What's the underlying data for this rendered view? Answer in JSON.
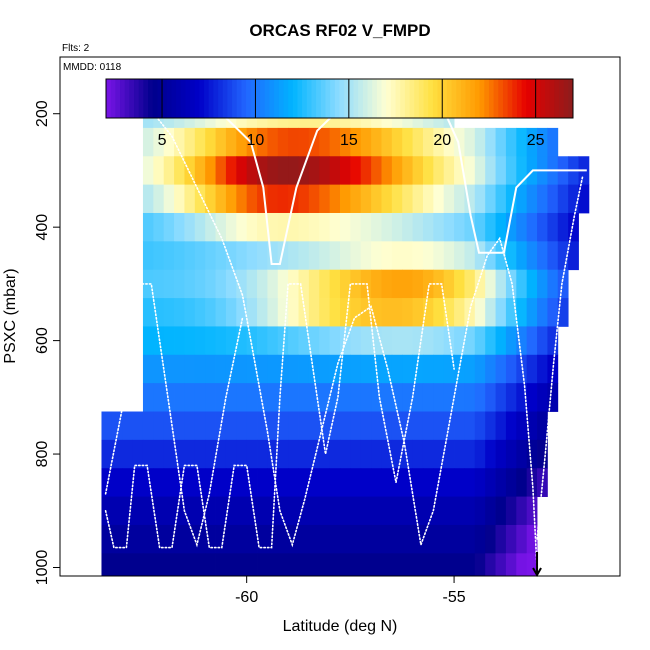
{
  "chart_data": {
    "type": "heatmap",
    "title": "ORCAS RF02 V_FMPD",
    "flights_label": "Flts: 2",
    "date_label": "MMDD: 0118",
    "xlabel": "Latitude (deg N)",
    "ylabel": "PSXC (mbar)",
    "xlim": [
      -64.5,
      -51
    ],
    "ylim": [
      1015,
      100
    ],
    "y_reversed": true,
    "x_ticks": [
      -60,
      -55
    ],
    "x_tick_labels": [
      "-60",
      "-55"
    ],
    "y_ticks": [
      200,
      400,
      600,
      800,
      1000
    ],
    "y_tick_labels": [
      "200",
      "400",
      "600",
      "800",
      "1000"
    ],
    "grid": false,
    "colorbar": {
      "range": [
        2,
        27
      ],
      "ticks": [
        5,
        10,
        15,
        20,
        25
      ],
      "tick_labels": [
        "5",
        "10",
        "15",
        "20",
        "25"
      ],
      "dividers": [
        5,
        10,
        15,
        20,
        25
      ],
      "colors": [
        "#7a14e8",
        "#00008c",
        "#0000c8",
        "#2266ff",
        "#00b4ff",
        "#8edcff",
        "#ffffd2",
        "#ffe040",
        "#ff9900",
        "#e60000",
        "#8c1c1c"
      ]
    },
    "cell": {
      "dlat": 0.25,
      "dp": 50
    },
    "grid_data": {
      "lat_min": -63.5,
      "lat_max": -51.75,
      "rows": [
        {
          "p_top": 175,
          "p_bot": 225,
          "lat_start": -62.5,
          "lat_end": -55
        },
        {
          "p_top": 225,
          "p_bot": 275,
          "lat_start": -62.5,
          "lat_end": -52.5
        },
        {
          "p_top": 275,
          "p_bot": 325,
          "lat_start": -62.5,
          "lat_end": -51.75
        },
        {
          "p_top": 325,
          "p_bot": 375,
          "lat_start": -62.5,
          "lat_end": -51.75
        },
        {
          "p_top": 375,
          "p_bot": 425,
          "lat_start": -62.5,
          "lat_end": -52
        },
        {
          "p_top": 425,
          "p_bot": 475,
          "lat_start": -62.5,
          "lat_end": -52
        },
        {
          "p_top": 475,
          "p_bot": 525,
          "lat_start": -62.5,
          "lat_end": -52.25
        },
        {
          "p_top": 525,
          "p_bot": 575,
          "lat_start": -62.5,
          "lat_end": -52.25
        },
        {
          "p_top": 575,
          "p_bot": 625,
          "lat_start": -62.5,
          "lat_end": -52.5
        },
        {
          "p_top": 625,
          "p_bot": 675,
          "lat_start": -62.5,
          "lat_end": -52.5
        },
        {
          "p_top": 675,
          "p_bot": 725,
          "lat_start": -62.5,
          "lat_end": -52.5
        },
        {
          "p_top": 725,
          "p_bot": 775,
          "lat_start": -63.5,
          "lat_end": -52.75
        },
        {
          "p_top": 775,
          "p_bot": 825,
          "lat_start": -63.5,
          "lat_end": -52.75
        },
        {
          "p_top": 825,
          "p_bot": 875,
          "lat_start": -63.5,
          "lat_end": -52.75
        },
        {
          "p_top": 875,
          "p_bot": 925,
          "lat_start": -63.5,
          "lat_end": -53
        },
        {
          "p_top": 925,
          "p_bot": 975,
          "lat_start": -63.5,
          "lat_end": -53
        },
        {
          "p_top": 975,
          "p_bot": 1015,
          "lat_start": -63.5,
          "lat_end": -53
        }
      ],
      "warm_blobs": [
        {
          "lat": -58.4,
          "p": 300,
          "amp": 11.5,
          "slat": 2.4,
          "sp": 70
        },
        {
          "lat": -59.8,
          "p": 330,
          "amp": 3,
          "slat": 1.2,
          "sp": 60
        },
        {
          "lat": -55.9,
          "p": 520,
          "amp": 8,
          "slat": 1.6,
          "sp": 55
        },
        {
          "lat": -58.3,
          "p": 535,
          "amp": 4,
          "slat": 1.4,
          "sp": 40
        }
      ],
      "background_profile": [
        {
          "p": 175,
          "v": 14
        },
        {
          "p": 300,
          "v": 13.5
        },
        {
          "p": 420,
          "v": 12
        },
        {
          "p": 480,
          "v": 13.5
        },
        {
          "p": 600,
          "v": 12
        },
        {
          "p": 700,
          "v": 10
        },
        {
          "p": 800,
          "v": 8
        },
        {
          "p": 900,
          "v": 6
        },
        {
          "p": 1000,
          "v": 4.5
        }
      ],
      "east_bias": {
        "lat0": -54.5,
        "per_deg": -2.2
      }
    },
    "flight_tracks": [
      {
        "name": "track-a",
        "style": "solid",
        "points": [
          [
            -62.4,
            175
          ],
          [
            -61.5,
            180
          ],
          [
            -60.6,
            200
          ],
          [
            -59.9,
            250
          ],
          [
            -59.6,
            330
          ],
          [
            -59.4,
            465
          ],
          [
            -59.2,
            465
          ],
          [
            -58.8,
            330
          ],
          [
            -58.3,
            230
          ],
          [
            -57.6,
            180
          ],
          [
            -57,
            180
          ],
          [
            -56,
            180
          ],
          [
            -55.3,
            185
          ],
          [
            -54.9,
            250
          ],
          [
            -54.6,
            380
          ],
          [
            -54.4,
            445
          ],
          [
            -53.8,
            445
          ],
          [
            -53.5,
            330
          ],
          [
            -53.1,
            300
          ],
          [
            -52.8,
            300
          ],
          [
            -52.3,
            300
          ],
          [
            -51.8,
            300
          ]
        ]
      },
      {
        "name": "track-b",
        "style": "dotted",
        "points": [
          [
            -62.4,
            185
          ],
          [
            -61.8,
            240
          ],
          [
            -61.2,
            330
          ],
          [
            -60.6,
            420
          ],
          [
            -60.1,
            520
          ],
          [
            -59.8,
            640
          ],
          [
            -59.5,
            760
          ],
          [
            -59.2,
            900
          ],
          [
            -58.9,
            960
          ],
          [
            -58.6,
            880
          ],
          [
            -58.2,
            760
          ],
          [
            -57.8,
            640
          ],
          [
            -57.4,
            560
          ],
          [
            -57.0,
            540
          ],
          [
            -56.6,
            650
          ],
          [
            -56.2,
            780
          ],
          [
            -55.8,
            960
          ],
          [
            -55.5,
            900
          ],
          [
            -55.2,
            780
          ],
          [
            -54.9,
            660
          ],
          [
            -54.6,
            540
          ],
          [
            -54.2,
            450
          ],
          [
            -53.9,
            420
          ],
          [
            -53.6,
            500
          ],
          [
            -53.3,
            680
          ],
          [
            -53.1,
            860
          ],
          [
            -53.0,
            1000
          ]
        ]
      },
      {
        "name": "track-c",
        "style": "dotted",
        "points": [
          [
            -63.4,
            900
          ],
          [
            -63.2,
            965
          ],
          [
            -62.9,
            965
          ],
          [
            -62.7,
            820
          ],
          [
            -62.4,
            820
          ],
          [
            -62.1,
            965
          ],
          [
            -61.8,
            965
          ],
          [
            -61.5,
            820
          ],
          [
            -61.2,
            820
          ],
          [
            -60.9,
            965
          ],
          [
            -60.6,
            965
          ],
          [
            -60.3,
            820
          ],
          [
            -60.0,
            820
          ],
          [
            -59.7,
            965
          ],
          [
            -59.4,
            965
          ],
          [
            -59.2,
            700
          ],
          [
            -59.0,
            500
          ],
          [
            -58.7,
            500
          ],
          [
            -58.4,
            650
          ],
          [
            -58.1,
            800
          ],
          [
            -57.8,
            700
          ],
          [
            -57.5,
            500
          ],
          [
            -57.1,
            500
          ],
          [
            -56.8,
            700
          ],
          [
            -56.4,
            850
          ],
          [
            -56.0,
            700
          ],
          [
            -55.6,
            500
          ],
          [
            -55.3,
            500
          ],
          [
            -55.0,
            650
          ]
        ]
      },
      {
        "name": "track-d",
        "style": "dotted",
        "points": [
          [
            -63.4,
            870
          ],
          [
            -63.0,
            720
          ],
          [
            -62.6,
            500
          ],
          [
            -62.3,
            500
          ],
          [
            -61.9,
            700
          ],
          [
            -61.5,
            900
          ],
          [
            -61.2,
            960
          ],
          [
            -60.9,
            870
          ],
          [
            -60.5,
            700
          ],
          [
            -60.1,
            560
          ]
        ]
      },
      {
        "name": "track-e",
        "style": "dotted",
        "points": [
          [
            -53.0,
            950
          ],
          [
            -52.8,
            800
          ],
          [
            -52.6,
            640
          ],
          [
            -52.4,
            500
          ],
          [
            -52.1,
            380
          ],
          [
            -51.9,
            310
          ]
        ]
      }
    ],
    "end_marker_lat": -53.0
  }
}
